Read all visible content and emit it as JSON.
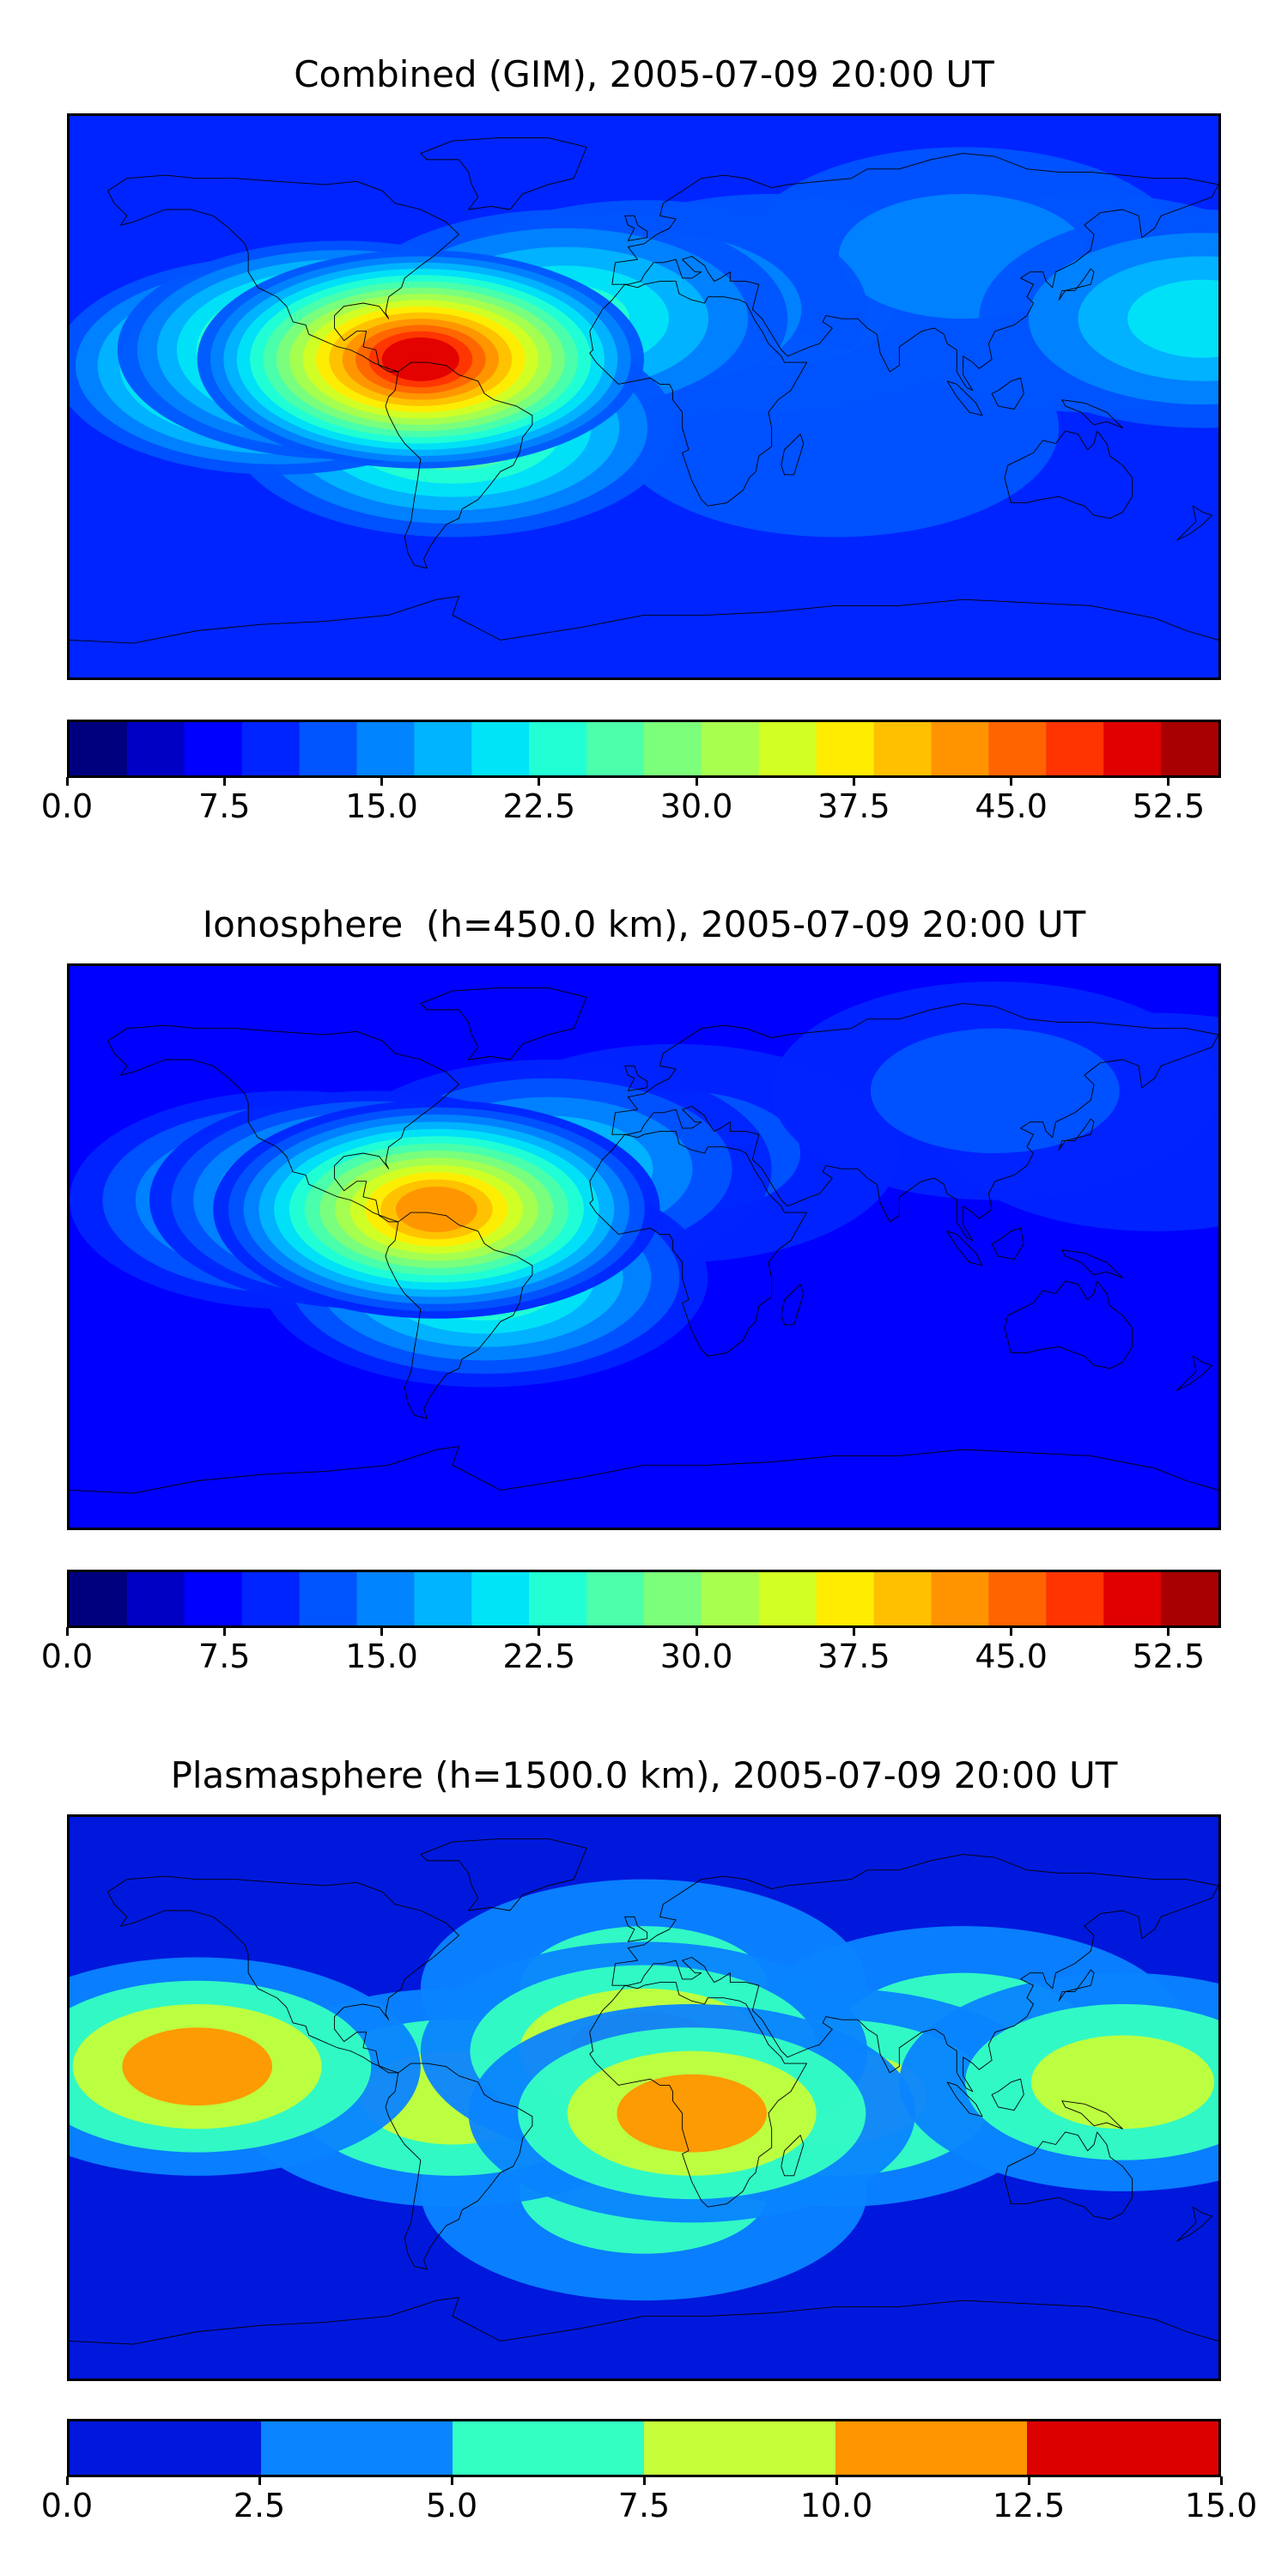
{
  "palette_jet_20": [
    "#00007f",
    "#0000c5",
    "#0000ff",
    "#0024ff",
    "#0054ff",
    "#0084ff",
    "#00b4ff",
    "#00e4f8",
    "#22ffd4",
    "#4cffaa",
    "#7cff7a",
    "#a8ff4e",
    "#d2ff24",
    "#ffec00",
    "#ffc000",
    "#ff9400",
    "#ff6400",
    "#ff3400",
    "#e10000",
    "#a80000"
  ],
  "palette_plasma_6": [
    "#0018dc",
    "#0a84ff",
    "#34ffc2",
    "#c4ff3a",
    "#ff9600",
    "#dc0000"
  ],
  "land_outline_color": "#000000",
  "chart_data": [
    {
      "type": "heatmap",
      "title": "Combined (GIM), 2005-07-09 20:00 UT",
      "projection": "lon-lat world map with coastlines",
      "xlim": [
        -180,
        180
      ],
      "ylim": [
        -90,
        90
      ],
      "colorbar": {
        "min": 0.0,
        "max": 55.0,
        "levels": 20,
        "ticks": [
          0.0,
          7.5,
          15.0,
          22.5,
          30.0,
          37.5,
          45.0,
          52.5
        ],
        "tick_labels": [
          "0.0",
          "7.5",
          "15.0",
          "22.5",
          "30.0",
          "37.5",
          "45.0",
          "52.5"
        ]
      },
      "background_value": 9,
      "features": [
        {
          "lon": -70,
          "lat": 12,
          "value": 51,
          "note": "peak over Caribbean / northern South America"
        },
        {
          "lon": -95,
          "lat": 15,
          "value": 38
        },
        {
          "lon": -115,
          "lat": 10,
          "value": 33
        },
        {
          "lon": -60,
          "lat": -10,
          "value": 30
        },
        {
          "lon": -25,
          "lat": 25,
          "value": 22
        },
        {
          "lon": 0,
          "lat": 28,
          "value": 18
        },
        {
          "lon": 40,
          "lat": 30,
          "value": 15
        },
        {
          "lon": 100,
          "lat": 45,
          "value": 15
        },
        {
          "lon": 140,
          "lat": 30,
          "value": 13
        },
        {
          "lon": 175,
          "lat": 25,
          "value": 20
        },
        {
          "lon": 60,
          "lat": -10,
          "value": 12
        },
        {
          "lon": 10,
          "lat": -45,
          "value": 6
        },
        {
          "lon": 120,
          "lat": -45,
          "value": 5
        },
        {
          "lon": 30,
          "lat": 60,
          "value": 10
        }
      ]
    },
    {
      "type": "heatmap",
      "title": "Ionosphere  (h=450.0 km), 2005-07-09 20:00 UT",
      "projection": "lon-lat world map with coastlines",
      "xlim": [
        -180,
        180
      ],
      "ylim": [
        -90,
        90
      ],
      "colorbar": {
        "min": 0.0,
        "max": 55.0,
        "levels": 20,
        "ticks": [
          0.0,
          7.5,
          15.0,
          22.5,
          30.0,
          37.5,
          45.0,
          52.5
        ],
        "tick_labels": [
          "0.0",
          "7.5",
          "15.0",
          "22.5",
          "30.0",
          "37.5",
          "45.0",
          "52.5"
        ]
      },
      "background_value": 7,
      "features": [
        {
          "lon": -65,
          "lat": 12,
          "value": 42,
          "note": "peak over Caribbean"
        },
        {
          "lon": -85,
          "lat": 15,
          "value": 32
        },
        {
          "lon": -110,
          "lat": 15,
          "value": 24
        },
        {
          "lon": -50,
          "lat": -10,
          "value": 26
        },
        {
          "lon": -30,
          "lat": 25,
          "value": 20
        },
        {
          "lon": 10,
          "lat": 30,
          "value": 12
        },
        {
          "lon": 100,
          "lat": 0,
          "value": 2
        },
        {
          "lon": 150,
          "lat": 5,
          "value": 3
        },
        {
          "lon": 40,
          "lat": -25,
          "value": 2
        },
        {
          "lon": 160,
          "lat": 40,
          "value": 10
        },
        {
          "lon": 110,
          "lat": 50,
          "value": 12
        }
      ]
    },
    {
      "type": "heatmap",
      "title": "Plasmasphere (h=1500.0 km), 2005-07-09 20:00 UT",
      "projection": "lon-lat world map with coastlines",
      "xlim": [
        -180,
        180
      ],
      "ylim": [
        -90,
        90
      ],
      "colorbar": {
        "min": 0.0,
        "max": 15.0,
        "levels": 6,
        "ticks": [
          0.0,
          2.5,
          5.0,
          7.5,
          10.0,
          12.5,
          15.0
        ],
        "tick_labels": [
          "0.0",
          "2.5",
          "5.0",
          "7.5",
          "10.0",
          "12.5",
          "15.0"
        ]
      },
      "background_value": 1.5,
      "features": [
        {
          "lon": -140,
          "lat": 10,
          "value": 11,
          "note": "orange region over eastern Pacific"
        },
        {
          "lon": 0,
          "lat": 15,
          "value": 10.5
        },
        {
          "lon": 15,
          "lat": -5,
          "value": 10.5
        },
        {
          "lon": -60,
          "lat": 0,
          "value": 8.5
        },
        {
          "lon": 60,
          "lat": 0,
          "value": 8.5
        },
        {
          "lon": 150,
          "lat": 5,
          "value": 8.5
        },
        {
          "lon": 100,
          "lat": 20,
          "value": 6
        },
        {
          "lon": 0,
          "lat": 35,
          "value": 5.5
        },
        {
          "lon": 0,
          "lat": -30,
          "value": 5.5
        }
      ]
    }
  ]
}
